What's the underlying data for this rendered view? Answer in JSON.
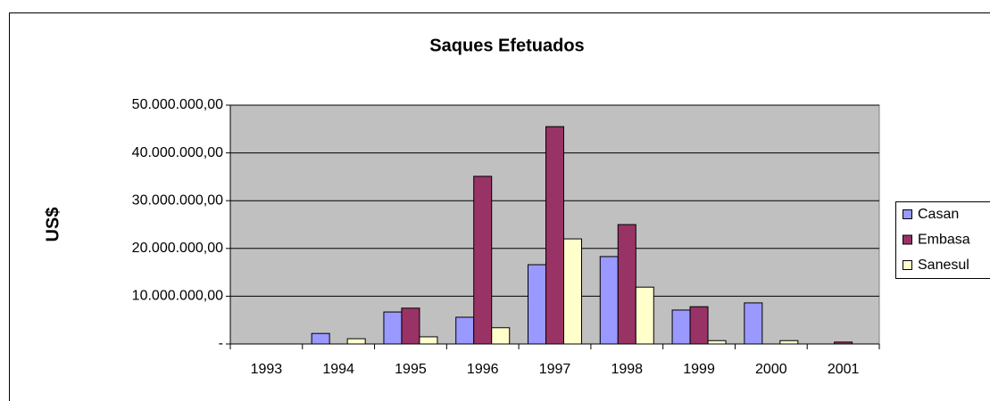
{
  "chart_data": {
    "type": "bar",
    "title": "Saques Efetuados",
    "y_label": "US$",
    "categories": [
      "1993",
      "1994",
      "1995",
      "1996",
      "1997",
      "1998",
      "1999",
      "2000",
      "2001"
    ],
    "series": [
      {
        "name": "Casan",
        "color": "#9999ff",
        "values": [
          0,
          2200000,
          6700000,
          5600000,
          16600000,
          18300000,
          7100000,
          8600000,
          0
        ]
      },
      {
        "name": "Embasa",
        "color": "#993366",
        "values": [
          0,
          0,
          7500000,
          35100000,
          45500000,
          25000000,
          7800000,
          0,
          400000
        ]
      },
      {
        "name": "Sanesul",
        "color": "#ffffcc",
        "values": [
          0,
          1100000,
          1500000,
          3400000,
          22000000,
          11900000,
          700000,
          700000,
          0
        ]
      }
    ],
    "ylim": [
      0,
      50000000
    ],
    "yticks": [
      {
        "value": 0,
        "label": "-"
      },
      {
        "value": 10000000,
        "label": "10.000.000,00"
      },
      {
        "value": 20000000,
        "label": "20.000.000,00"
      },
      {
        "value": 30000000,
        "label": "30.000.000,00"
      },
      {
        "value": 40000000,
        "label": "40.000.000,00"
      },
      {
        "value": 50000000,
        "label": "50.000.000,00"
      }
    ],
    "grid": true,
    "legend": "right",
    "plot_background": "#c0c0c0"
  }
}
